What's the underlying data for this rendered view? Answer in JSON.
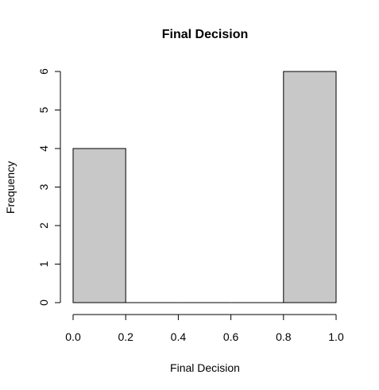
{
  "chart_data": {
    "type": "bar",
    "title": "Final Decision",
    "xlabel": "Final Decision",
    "ylabel": "Frequency",
    "bins": [
      {
        "x0": 0.0,
        "x1": 0.2,
        "value": 4
      },
      {
        "x0": 0.2,
        "x1": 0.4,
        "value": 0
      },
      {
        "x0": 0.4,
        "x1": 0.6,
        "value": 0
      },
      {
        "x0": 0.6,
        "x1": 0.8,
        "value": 0
      },
      {
        "x0": 0.8,
        "x1": 1.0,
        "value": 6
      }
    ],
    "xlim": [
      0,
      1
    ],
    "ylim": [
      0,
      6
    ],
    "xticks": [
      "0.0",
      "0.2",
      "0.4",
      "0.6",
      "0.8",
      "1.0"
    ],
    "yticks": [
      "0",
      "1",
      "2",
      "3",
      "4",
      "5",
      "6"
    ],
    "grid": false,
    "bar_color": "#c8c8c8"
  }
}
